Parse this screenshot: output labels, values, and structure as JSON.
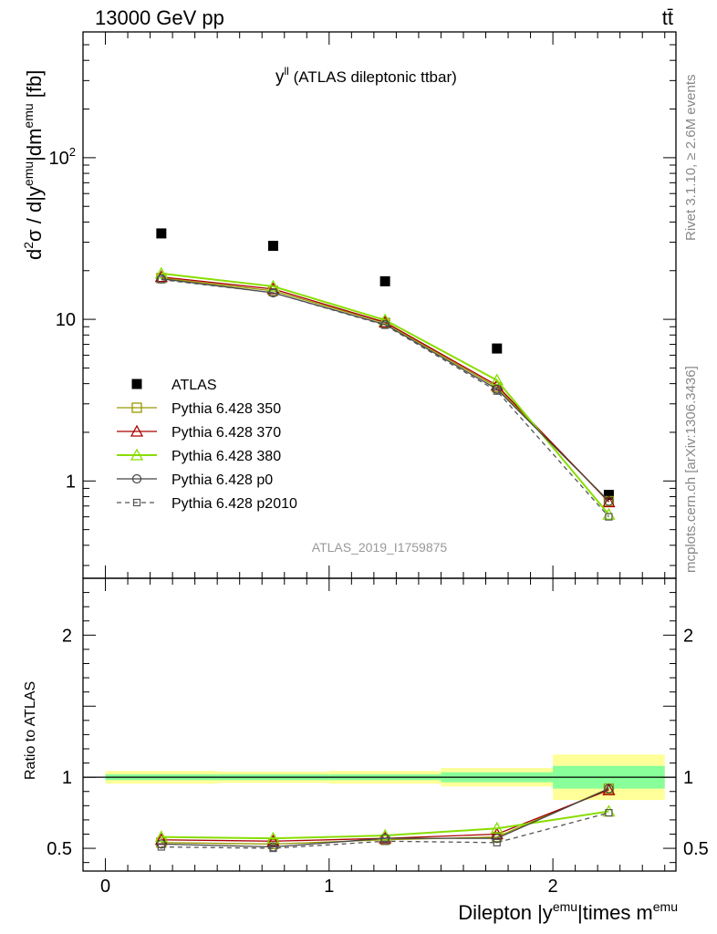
{
  "header": {
    "left": "13000 GeV pp",
    "right": "tt̄"
  },
  "side": {
    "rivet": "Rivet 3.1.10, ≥ 2.6M events",
    "mcplots": "mcplots.cern.ch [arXiv:1306.3436]"
  },
  "chart_data": [
    {
      "type": "scatter",
      "title": "y^ll (ATLAS dileptonic ttbar)",
      "title_main": "y",
      "title_sup": "ll",
      "title_rest": " (ATLAS dileptonic ttbar)",
      "ylabel": "d²σ / d|y^emu|dm^emu [fb]",
      "ylabel_parts": {
        "d": "d",
        "sup1": "2",
        "mid": "σ / d|y",
        "sup2": "emu",
        "mid2": "|dm",
        "sup3": "emu",
        "end": " [fb]"
      },
      "yscale": "log",
      "ylim": [
        0.25,
        600
      ],
      "xlim": [
        -0.1,
        2.55
      ],
      "ytick_labels": [
        "1",
        "10",
        "10²"
      ],
      "ytick_label_parts": {
        "base": "10",
        "exp": "2"
      },
      "analysis_id": "ATLAS_2019_I1759875",
      "legend_placement": "middle-left",
      "x": [
        0.25,
        0.75,
        1.25,
        1.75,
        2.25
      ],
      "series": [
        {
          "name": "ATLAS",
          "color": "#000000",
          "marker": "filled-square",
          "values": [
            34,
            28.5,
            17.2,
            6.6,
            0.82
          ]
        },
        {
          "name": "Pythia 6.428 350",
          "color": "#999900",
          "marker": "open-square",
          "values": [
            18.0,
            15.0,
            9.5,
            3.8,
            0.75
          ]
        },
        {
          "name": "Pythia 6.428 370",
          "color": "#aa0000",
          "marker": "open-triangle",
          "values": [
            18.3,
            15.4,
            9.6,
            3.9,
            0.74
          ]
        },
        {
          "name": "Pythia 6.428 380",
          "color": "#88dd00",
          "marker": "open-triangle",
          "values": [
            19.2,
            16.0,
            9.9,
            4.2,
            0.62
          ]
        },
        {
          "name": "Pythia 6.428 p0",
          "color": "#444444",
          "marker": "open-circle",
          "values": [
            17.8,
            14.6,
            9.3,
            3.7,
            0.75
          ]
        },
        {
          "name": "Pythia 6.428 p2010",
          "color": "#555555",
          "marker": "small-open-square",
          "dashed": true,
          "values": [
            17.6,
            14.6,
            9.2,
            3.6,
            0.6
          ]
        }
      ]
    },
    {
      "type": "scatter",
      "title": "",
      "xlabel": "Dilepton |y^emu|times m^emu",
      "xlabel_parts": {
        "a": "Dilepton |y",
        "sup1": "emu",
        "b": "|times m",
        "sup2": "emu"
      },
      "ylabel": "Ratio to ATLAS",
      "ylim": [
        0.34,
        2.4
      ],
      "xlim": [
        -0.1,
        2.55
      ],
      "xtick_labels": [
        "0",
        "1",
        "2"
      ],
      "ytick_labels": [
        "0.5",
        "1",
        "2"
      ],
      "bands": {
        "edges": [
          0,
          0.5,
          1.0,
          1.5,
          2.0,
          2.5
        ],
        "green_half": [
          0.02,
          0.02,
          0.02,
          0.035,
          0.08
        ],
        "yellow_half": [
          0.045,
          0.04,
          0.045,
          0.065,
          0.16
        ],
        "green_color": "#88ff99",
        "yellow_color": "#ffff99"
      },
      "x": [
        0.25,
        0.75,
        1.25,
        1.75,
        2.25
      ],
      "series": [
        {
          "name": "Pythia 6.428 350",
          "color": "#999900",
          "values": [
            0.54,
            0.53,
            0.56,
            0.58,
            0.92
          ]
        },
        {
          "name": "Pythia 6.428 370",
          "color": "#aa0000",
          "values": [
            0.56,
            0.55,
            0.57,
            0.6,
            0.91
          ]
        },
        {
          "name": "Pythia 6.428 380",
          "color": "#88dd00",
          "values": [
            0.58,
            0.57,
            0.59,
            0.64,
            0.76
          ]
        },
        {
          "name": "Pythia 6.428 p0",
          "color": "#444444",
          "values": [
            0.53,
            0.51,
            0.57,
            0.57,
            0.92
          ]
        },
        {
          "name": "Pythia 6.428 p2010",
          "color": "#555555",
          "dashed": true,
          "values": [
            0.51,
            0.5,
            0.55,
            0.54,
            0.75
          ]
        }
      ]
    }
  ]
}
